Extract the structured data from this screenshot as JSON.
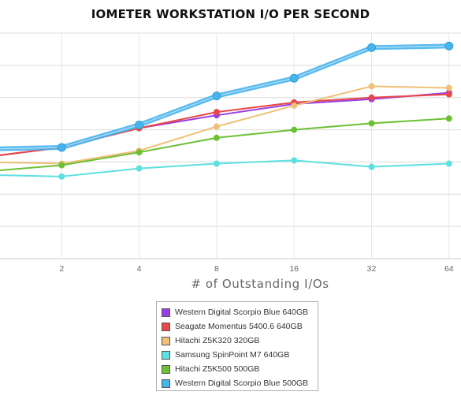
{
  "chart_data": {
    "type": "line",
    "title": "IOMETER WORKSTATION I/O PER SECOND",
    "xlabel": "# of Outstanding I/Os",
    "ylabel": "",
    "x": [
      1,
      2,
      4,
      8,
      16,
      32,
      64
    ],
    "x_tick_labels": [
      "2",
      "4",
      "8",
      "16",
      "32",
      "64"
    ],
    "ylim": [
      0,
      7
    ],
    "grid": "horizontal",
    "legend_position": "bottom-center",
    "series": [
      {
        "name": "Western Digital Scorpio Blue 640GB",
        "color": "#9a3fe0",
        "values": [
          3.15,
          3.45,
          4.05,
          4.45,
          4.8,
          4.95,
          5.15
        ]
      },
      {
        "name": "Seagate Momentus 5400.6 640GB",
        "color": "#e84848",
        "values": [
          3.15,
          3.45,
          4.05,
          4.55,
          4.85,
          5.0,
          5.1
        ]
      },
      {
        "name": "Hitachi Z5K320 320GB",
        "color": "#f0c078",
        "values": [
          3.0,
          2.95,
          3.35,
          4.1,
          4.75,
          5.35,
          5.3
        ]
      },
      {
        "name": "Samsung SpinPoint M7 640GB",
        "color": "#5ce0e0",
        "values": [
          2.6,
          2.55,
          2.8,
          2.95,
          3.05,
          2.85,
          2.95
        ]
      },
      {
        "name": "Hitachi Z5K500 500GB",
        "color": "#6cc034",
        "values": [
          2.7,
          2.9,
          3.3,
          3.75,
          4.0,
          4.2,
          4.35
        ]
      },
      {
        "name": "Western Digital Scorpio Blue 500GB",
        "color": "#48b4ec",
        "values": [
          3.4,
          3.45,
          4.15,
          5.05,
          5.6,
          6.55,
          6.6
        ]
      }
    ]
  }
}
